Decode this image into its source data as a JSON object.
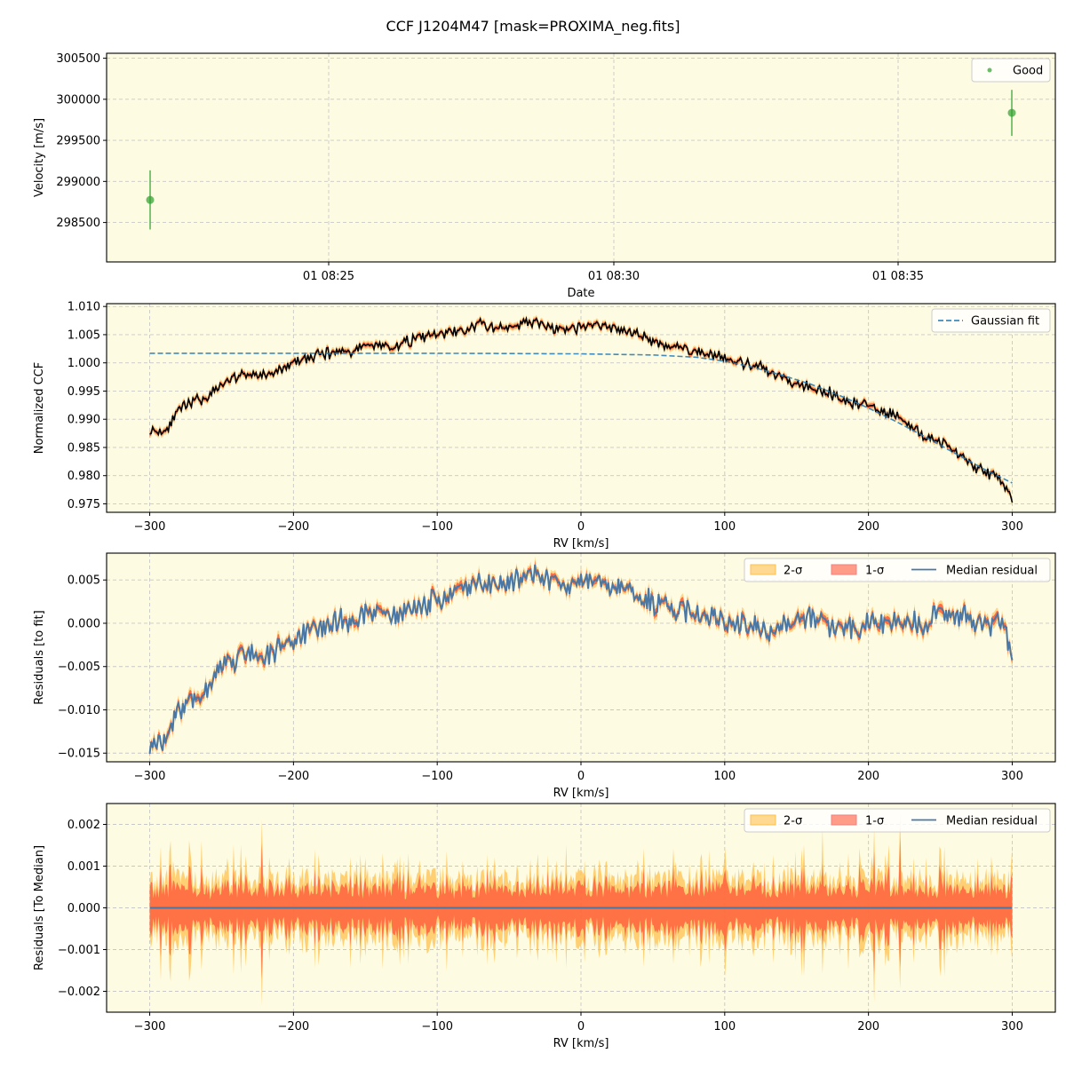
{
  "figure": {
    "title": "CCF J1204M47 [mask=PROXIMA_neg.fits]",
    "background": "#ffffff",
    "axes_facecolor": "#fdfbe2"
  },
  "colors": {
    "good_point": "#2ca02c",
    "gaussian_fit": "#1f77b4",
    "ccf_line": "#000000",
    "band_2sigma": "#ffc04d",
    "band_1sigma": "#ff5a3a",
    "median_residual": "#4a77a4",
    "grid": "#c8c8c8"
  },
  "chart_data": [
    {
      "id": "velocity",
      "type": "scatter",
      "title": "",
      "xlabel": "Date",
      "ylabel": "Velocity [m/s]",
      "xticks": [
        "01 08:25",
        "01 08:30",
        "01 08:35"
      ],
      "yticks": [
        298500,
        299000,
        299500,
        300000,
        300500
      ],
      "ylim": [
        298020,
        300560
      ],
      "legend": [
        {
          "label": "Good",
          "style": "point"
        }
      ],
      "legend_position": "upper right",
      "grid": true,
      "points": [
        {
          "x": "01 08:21:14",
          "y": 298775,
          "yerr": 360
        },
        {
          "x": "01 08:36:20",
          "y": 299835,
          "yerr": 280
        }
      ]
    },
    {
      "id": "ccf",
      "type": "line",
      "xlabel": "RV [km/s]",
      "ylabel": "Normalized CCF",
      "xticks": [
        -300,
        -200,
        -100,
        0,
        100,
        200,
        300
      ],
      "yticks": [
        0.975,
        0.98,
        0.985,
        0.99,
        0.995,
        1.0,
        1.005,
        1.01
      ],
      "xlim": [
        -330,
        330
      ],
      "ylim": [
        0.9735,
        1.0105
      ],
      "grid": true,
      "legend": [
        {
          "label": "Gaussian fit",
          "style": "dashed"
        }
      ],
      "legend_position": "upper right",
      "series": [
        {
          "name": "CCF",
          "x": [
            -300,
            -290,
            -280,
            -270,
            -260,
            -250,
            -240,
            -230,
            -220,
            -210,
            -200,
            -190,
            -180,
            -170,
            -160,
            -150,
            -140,
            -130,
            -120,
            -110,
            -100,
            -90,
            -80,
            -70,
            -60,
            -50,
            -40,
            -30,
            -20,
            -10,
            0,
            10,
            20,
            30,
            40,
            50,
            60,
            70,
            80,
            90,
            100,
            110,
            120,
            130,
            140,
            150,
            160,
            170,
            180,
            190,
            200,
            210,
            220,
            230,
            240,
            250,
            260,
            270,
            280,
            290,
            300
          ],
          "values": [
            0.9882,
            0.9878,
            0.9915,
            0.993,
            0.994,
            0.9958,
            0.9978,
            0.998,
            0.9978,
            0.9985,
            1.0,
            1.0008,
            1.0015,
            1.0022,
            1.002,
            1.003,
            1.0032,
            1.0028,
            1.004,
            1.0045,
            1.005,
            1.0055,
            1.0058,
            1.0068,
            1.0062,
            1.0065,
            1.007,
            1.0072,
            1.006,
            1.0058,
            1.0062,
            1.0068,
            1.0062,
            1.006,
            1.005,
            1.004,
            1.003,
            1.0028,
            1.002,
            1.0015,
            1.0008,
            0.9998,
            0.9995,
            0.9985,
            0.9975,
            0.9965,
            0.9958,
            0.995,
            0.9938,
            0.993,
            0.9925,
            0.9915,
            0.9905,
            0.989,
            0.987,
            0.9858,
            0.9845,
            0.9825,
            0.9805,
            0.98,
            0.9758
          ]
        },
        {
          "name": "Gaussian fit",
          "x": [
            -300,
            -200,
            -100,
            0,
            50,
            80,
            100,
            120,
            140,
            160,
            180,
            200,
            220,
            240,
            260,
            280,
            300
          ],
          "values": [
            1.0017,
            1.0017,
            1.0017,
            1.0016,
            1.0014,
            1.001,
            1.0003,
            0.9992,
            0.9978,
            0.9962,
            0.9942,
            0.992,
            0.9895,
            0.9868,
            0.984,
            0.9812,
            0.9787
          ]
        }
      ]
    },
    {
      "id": "residuals_fit",
      "type": "line",
      "xlabel": "RV [km/s]",
      "ylabel": "Residuals [to fit]",
      "xticks": [
        -300,
        -200,
        -100,
        0,
        100,
        200,
        300
      ],
      "yticks": [
        -0.015,
        -0.01,
        -0.005,
        0.0,
        0.005
      ],
      "xlim": [
        -330,
        330
      ],
      "ylim": [
        -0.016,
        0.0081
      ],
      "grid": true,
      "legend": [
        {
          "label": "2-σ",
          "style": "patch"
        },
        {
          "label": "1-σ",
          "style": "patch"
        },
        {
          "label": "Median residual",
          "style": "line"
        }
      ],
      "legend_position": "upper right",
      "series": [
        {
          "name": "Median residual",
          "x": [
            -300,
            -290,
            -280,
            -270,
            -260,
            -250,
            -240,
            -230,
            -220,
            -210,
            -200,
            -190,
            -180,
            -170,
            -160,
            -150,
            -140,
            -130,
            -120,
            -110,
            -100,
            -90,
            -80,
            -70,
            -60,
            -50,
            -40,
            -30,
            -20,
            -10,
            0,
            10,
            20,
            30,
            40,
            50,
            60,
            70,
            80,
            90,
            100,
            110,
            120,
            130,
            140,
            150,
            160,
            170,
            180,
            190,
            200,
            210,
            220,
            230,
            240,
            250,
            260,
            270,
            280,
            290,
            300
          ],
          "values": [
            -0.0135,
            -0.0138,
            -0.01,
            -0.009,
            -0.0075,
            -0.0055,
            -0.004,
            -0.0035,
            -0.0038,
            -0.003,
            -0.0018,
            -0.001,
            -0.0005,
            0.0005,
            0.0,
            0.0008,
            0.001,
            0.0008,
            0.0015,
            0.002,
            0.0028,
            0.0035,
            0.004,
            0.005,
            0.0045,
            0.0048,
            0.0052,
            0.0058,
            0.0045,
            0.0042,
            0.0045,
            0.005,
            0.0045,
            0.004,
            0.003,
            0.0025,
            0.002,
            0.0015,
            0.001,
            0.0008,
            0.0005,
            0.0,
            -0.0003,
            -0.001,
            -0.0005,
            0.0008,
            0.0005,
            0.0,
            -0.0008,
            -0.0005,
            0.0,
            0.0002,
            0.0003,
            0.0,
            -0.0002,
            0.0015,
            0.0005,
            0.0008,
            -0.0003,
            0.0,
            -0.0028
          ]
        }
      ],
      "bands": {
        "sigma1_halfwidth": 0.0004,
        "sigma2_halfwidth": 0.0007
      }
    },
    {
      "id": "residuals_median",
      "type": "area",
      "xlabel": "RV [km/s]",
      "ylabel": "Residuals [To Median]",
      "xticks": [
        -300,
        -200,
        -100,
        0,
        100,
        200,
        300
      ],
      "yticks": [
        -0.002,
        -0.001,
        0.0,
        0.001,
        0.002
      ],
      "xlim": [
        -330,
        330
      ],
      "ylim": [
        -0.0025,
        0.0025
      ],
      "grid": true,
      "legend": [
        {
          "label": "2-σ",
          "style": "patch"
        },
        {
          "label": "1-σ",
          "style": "patch"
        },
        {
          "label": "Median residual",
          "style": "line"
        }
      ],
      "legend_position": "upper right",
      "series": [
        {
          "name": "Median residual",
          "x": [
            -300,
            300
          ],
          "values": [
            0.0,
            0.0
          ]
        }
      ],
      "envelope_2sigma_peaks": {
        "x": [
          -300,
          -292,
          -286,
          -278,
          -272,
          -264,
          -254,
          -246,
          -238,
          -222,
          -212,
          -200,
          -190,
          -178,
          -166,
          -150,
          -140,
          -130,
          -120,
          -112,
          -96,
          -82,
          -72,
          -60,
          -44,
          -30,
          -16,
          -2,
          10,
          20,
          40,
          54,
          66,
          80,
          92,
          100,
          110,
          120,
          134,
          146,
          160,
          168,
          180,
          194,
          204,
          214,
          222,
          236,
          250,
          262,
          276,
          290,
          300
        ],
        "amplitude": [
          0.0006,
          0.0008,
          0.0017,
          0.001,
          0.0017,
          0.0016,
          0.0012,
          0.0012,
          0.001,
          0.0021,
          0.001,
          0.0011,
          0.0012,
          0.001,
          0.001,
          0.0012,
          0.0011,
          0.001,
          0.0013,
          0.0009,
          0.001,
          0.0014,
          0.001,
          0.0012,
          0.0011,
          0.0013,
          0.001,
          0.0012,
          0.0011,
          0.001,
          0.0012,
          0.0009,
          0.0011,
          0.001,
          0.0012,
          0.0018,
          0.0012,
          0.0011,
          0.001,
          0.0012,
          0.001,
          0.0019,
          0.0011,
          0.0018,
          0.0012,
          0.0019,
          0.0023,
          0.0012,
          0.0011,
          0.001,
          0.0012,
          0.0012,
          0.0015
        ]
      }
    }
  ]
}
